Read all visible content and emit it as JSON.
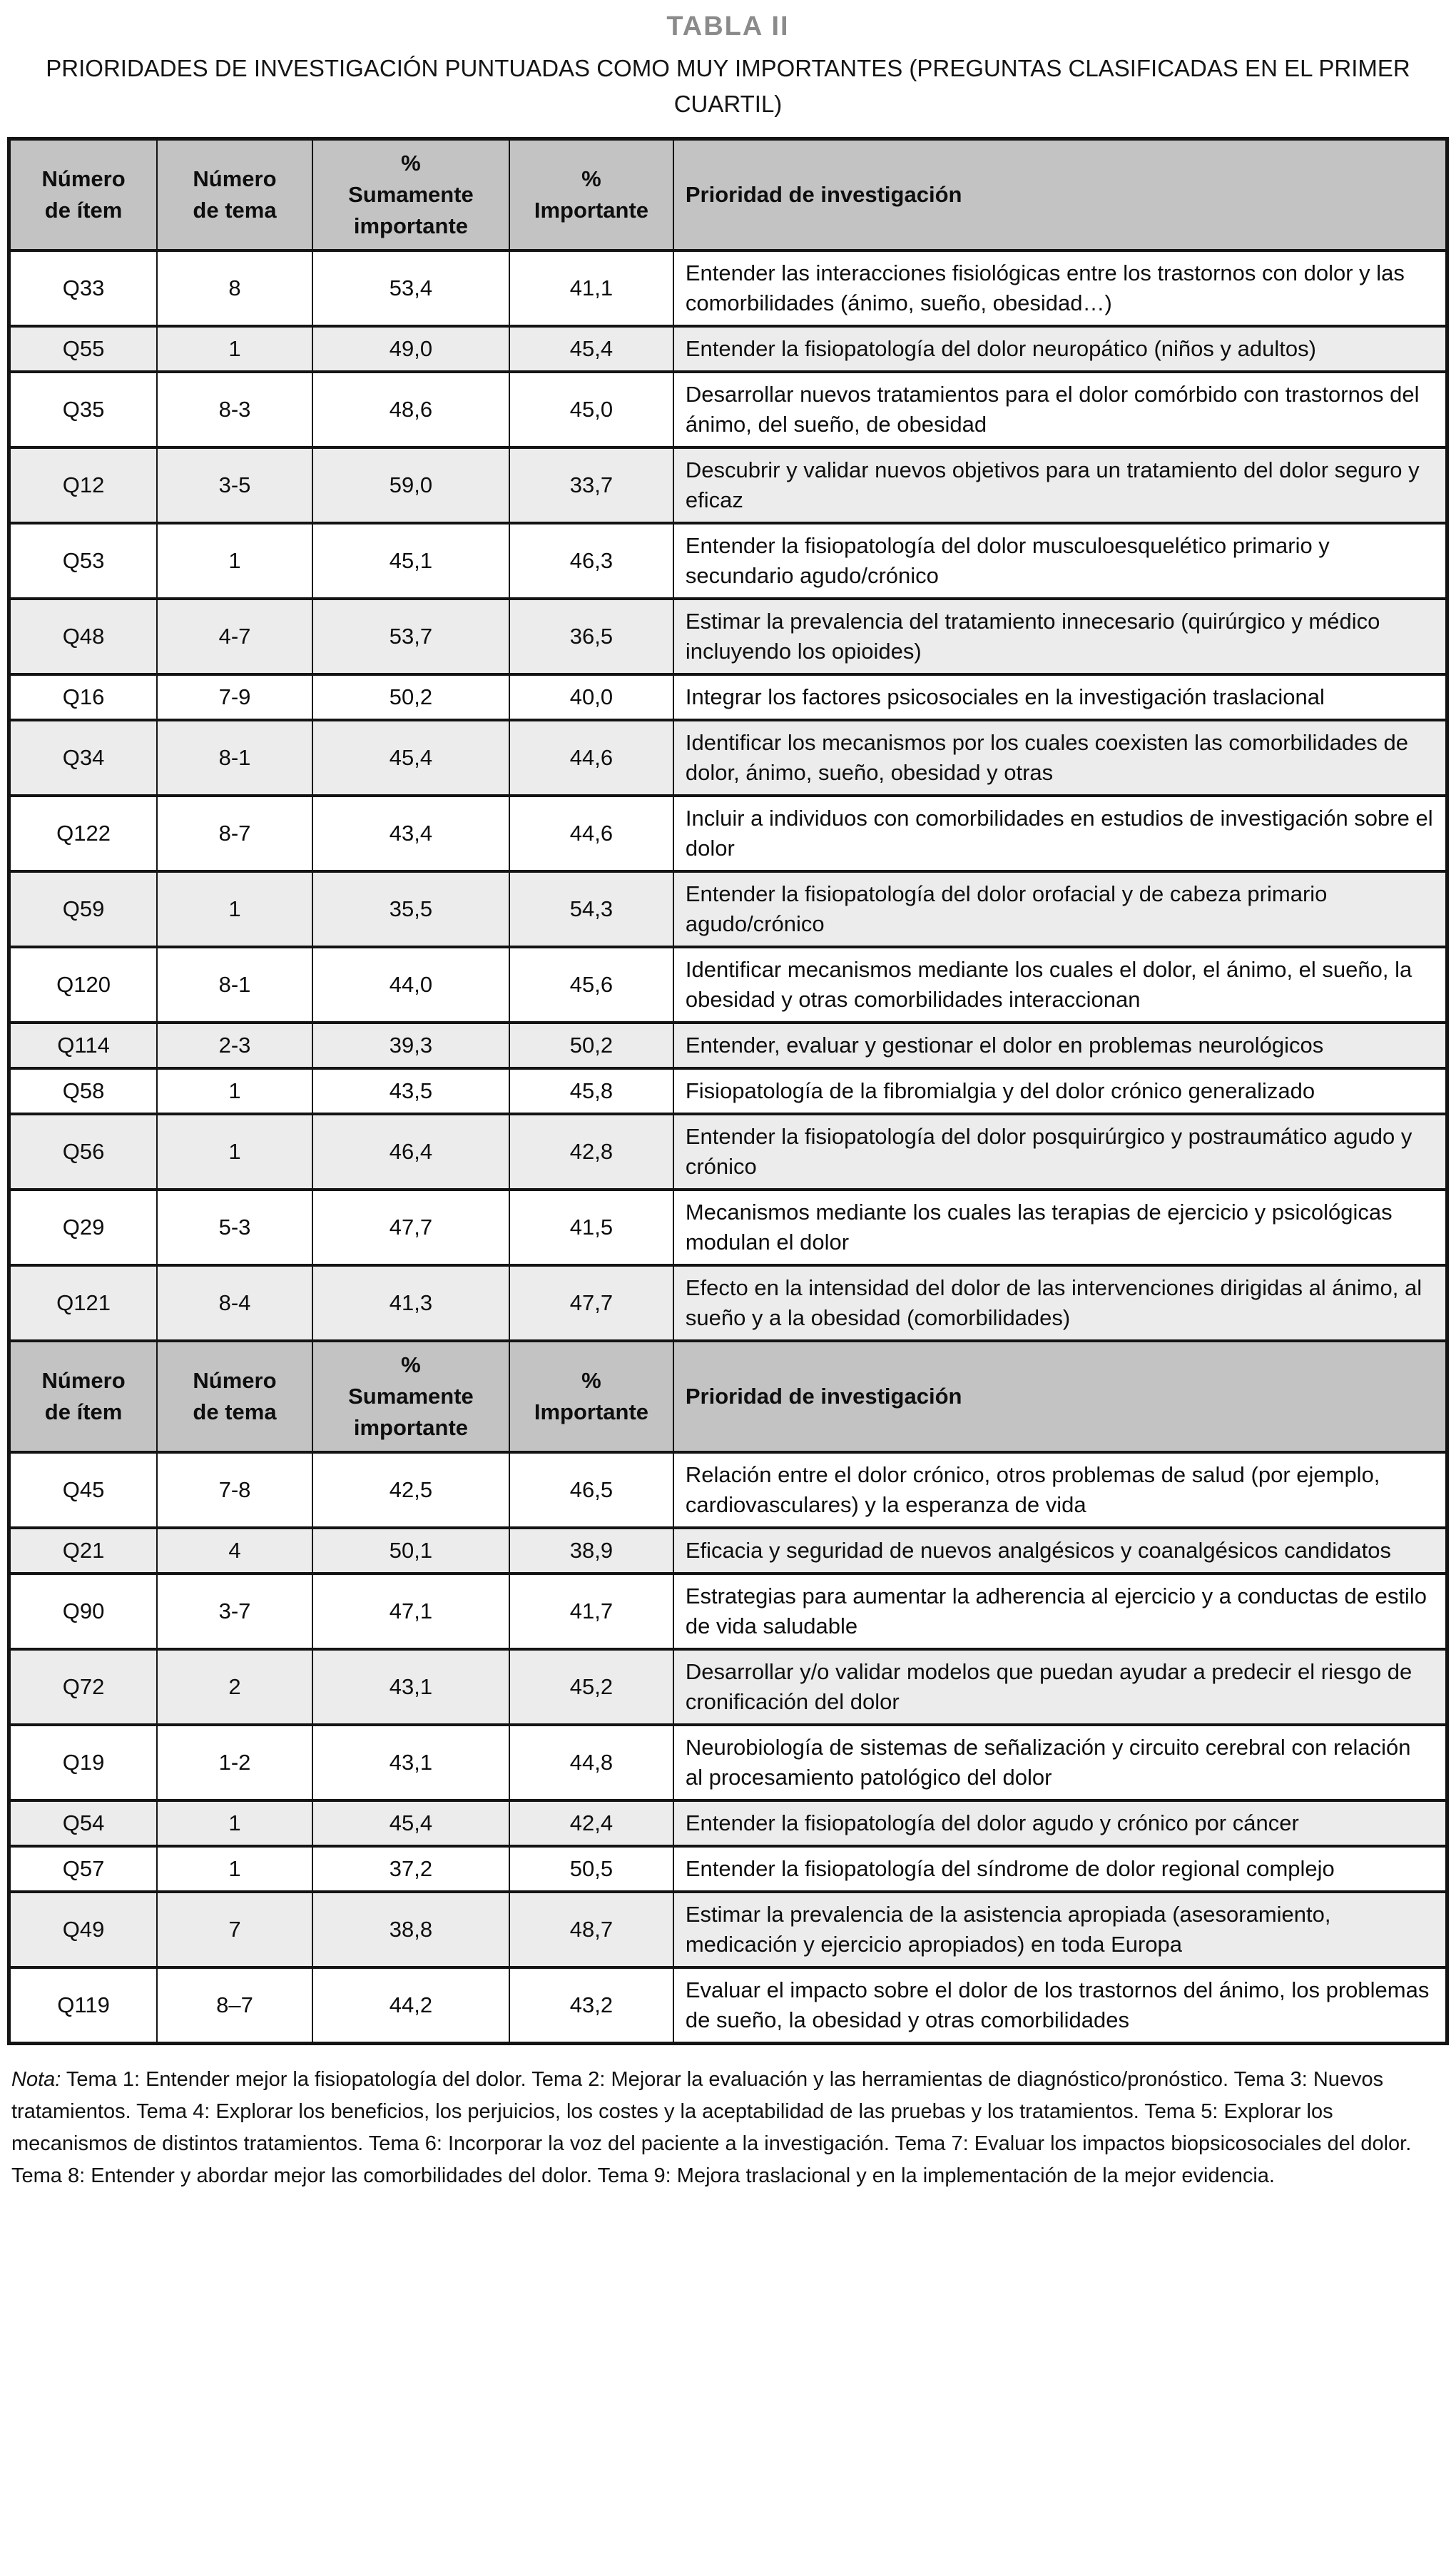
{
  "page": {
    "title": "TABLA II",
    "subtitle": "PRIORIDADES DE INVESTIGACIÓN PUNTUADAS COMO MUY IMPORTANTES (PREGUNTAS CLASIFICADAS EN EL PRIMER CUARTIL)"
  },
  "colors": {
    "header_bg": "#c3c3c3",
    "stripe_bg": "#ececec",
    "border": "#141414",
    "title_gray": "#8b8b8b"
  },
  "table": {
    "columns": [
      {
        "label": "Número\nde ítem"
      },
      {
        "label": "Número\nde tema"
      },
      {
        "label": "%\nSumamente\nimportante"
      },
      {
        "label": "%\nImportante"
      },
      {
        "label": "Prioridad de investigación"
      }
    ],
    "sections": [
      {
        "rows": [
          {
            "item": "Q33",
            "tema": "8",
            "sumamente": "53,4",
            "importante": "41,1",
            "prioridad": "Entender las interacciones fisiológicas entre los trastornos con dolor y las comorbilidades (ánimo, sueño, obesidad…)"
          },
          {
            "item": "Q55",
            "tema": "1",
            "sumamente": "49,0",
            "importante": "45,4",
            "prioridad": "Entender la fisiopatología del dolor neuropático (niños y adultos)"
          },
          {
            "item": "Q35",
            "tema": "8-3",
            "sumamente": "48,6",
            "importante": "45,0",
            "prioridad": "Desarrollar nuevos tratamientos para el dolor comórbido con trastornos del ánimo, del sueño, de obesidad"
          },
          {
            "item": "Q12",
            "tema": "3-5",
            "sumamente": "59,0",
            "importante": "33,7",
            "prioridad": "Descubrir y validar nuevos objetivos para un tratamiento del dolor seguro y eficaz"
          },
          {
            "item": "Q53",
            "tema": "1",
            "sumamente": "45,1",
            "importante": "46,3",
            "prioridad": "Entender la fisiopatología del dolor musculoesquelético primario y secundario agudo/crónico"
          },
          {
            "item": "Q48",
            "tema": "4-7",
            "sumamente": "53,7",
            "importante": "36,5",
            "prioridad": "Estimar la prevalencia del tratamiento innecesario (quirúrgico y médico incluyendo los opioides)"
          },
          {
            "item": "Q16",
            "tema": "7-9",
            "sumamente": "50,2",
            "importante": "40,0",
            "prioridad": "Integrar los factores psicosociales en la investigación traslacional"
          },
          {
            "item": "Q34",
            "tema": "8-1",
            "sumamente": "45,4",
            "importante": "44,6",
            "prioridad": "Identificar los mecanismos por los cuales coexisten las comorbilidades de dolor, ánimo, sueño, obesidad y otras"
          },
          {
            "item": "Q122",
            "tema": "8-7",
            "sumamente": "43,4",
            "importante": "44,6",
            "prioridad": "Incluir a individuos con comorbilidades en estudios de investigación sobre el dolor"
          },
          {
            "item": "Q59",
            "tema": "1",
            "sumamente": "35,5",
            "importante": "54,3",
            "prioridad": "Entender la fisiopatología del dolor orofacial y de cabeza primario agudo/crónico"
          },
          {
            "item": "Q120",
            "tema": "8-1",
            "sumamente": "44,0",
            "importante": "45,6",
            "prioridad": "Identificar mecanismos mediante los cuales el dolor, el ánimo, el sueño, la obesidad y otras comorbilidades interaccionan"
          },
          {
            "item": "Q114",
            "tema": "2-3",
            "sumamente": "39,3",
            "importante": "50,2",
            "prioridad": "Entender, evaluar y gestionar el dolor en problemas neurológicos"
          },
          {
            "item": "Q58",
            "tema": "1",
            "sumamente": "43,5",
            "importante": "45,8",
            "prioridad": "Fisiopatología de la fibromialgia y del dolor crónico generalizado"
          },
          {
            "item": "Q56",
            "tema": "1",
            "sumamente": "46,4",
            "importante": "42,8",
            "prioridad": "Entender la fisiopatología del dolor posquirúrgico y postraumático agudo y crónico"
          },
          {
            "item": "Q29",
            "tema": "5-3",
            "sumamente": "47,7",
            "importante": "41,5",
            "prioridad": "Mecanismos mediante los cuales las terapias de ejercicio y psicológicas modulan el dolor"
          },
          {
            "item": "Q121",
            "tema": "8-4",
            "sumamente": "41,3",
            "importante": "47,7",
            "prioridad": "Efecto en la intensidad del dolor de las intervenciones dirigidas al ánimo, al sueño y a la obesidad (comorbilidades)"
          }
        ]
      },
      {
        "rows": [
          {
            "item": "Q45",
            "tema": "7-8",
            "sumamente": "42,5",
            "importante": "46,5",
            "prioridad": "Relación entre el dolor crónico, otros problemas de salud (por ejemplo, cardiovasculares) y la esperanza de vida"
          },
          {
            "item": "Q21",
            "tema": "4",
            "sumamente": "50,1",
            "importante": "38,9",
            "prioridad": "Eficacia y seguridad de nuevos analgésicos y coanalgésicos candidatos"
          },
          {
            "item": "Q90",
            "tema": "3-7",
            "sumamente": "47,1",
            "importante": "41,7",
            "prioridad": "Estrategias para aumentar la adherencia al ejercicio y a conductas de estilo de vida saludable"
          },
          {
            "item": "Q72",
            "tema": "2",
            "sumamente": "43,1",
            "importante": "45,2",
            "prioridad": "Desarrollar y/o validar modelos que puedan ayudar a predecir el riesgo de cronificación del dolor"
          },
          {
            "item": "Q19",
            "tema": "1-2",
            "sumamente": "43,1",
            "importante": "44,8",
            "prioridad": "Neurobiología de sistemas de señalización y circuito cerebral con relación al procesamiento patológico del dolor"
          },
          {
            "item": "Q54",
            "tema": "1",
            "sumamente": "45,4",
            "importante": "42,4",
            "prioridad": "Entender la fisiopatología del dolor agudo y crónico por cáncer"
          },
          {
            "item": "Q57",
            "tema": "1",
            "sumamente": "37,2",
            "importante": "50,5",
            "prioridad": "Entender la fisiopatología del síndrome de dolor regional complejo"
          },
          {
            "item": "Q49",
            "tema": "7",
            "sumamente": "38,8",
            "importante": "48,7",
            "prioridad": "Estimar la prevalencia de la asistencia apropiada (asesoramiento, medicación y ejercicio apropiados) en toda Europa"
          },
          {
            "item": "Q119",
            "tema": "8–7",
            "sumamente": "44,2",
            "importante": "43,2",
            "prioridad": "Evaluar el impacto sobre el dolor de los trastornos del ánimo, los problemas de sueño, la obesidad y otras comorbilidades"
          }
        ]
      }
    ]
  },
  "note": {
    "label": "Nota:",
    "text": "Tema 1: Entender mejor la fisiopatología del dolor. Tema 2: Mejorar la evaluación y las herramientas de diagnóstico/pronóstico. Tema 3: Nuevos tratamientos. Tema 4: Explorar los beneficios, los perjuicios, los costes y la aceptabilidad de las pruebas y los tratamientos. Tema 5: Explorar los mecanismos de distintos tratamientos. Tema 6: Incorporar la voz del paciente a la investigación. Tema 7: Evaluar los impactos biopsicosociales del dolor. Tema 8: Entender y abordar mejor las comorbilidades del dolor. Tema 9: Mejora traslacional y en la implementación de la mejor evidencia."
  }
}
